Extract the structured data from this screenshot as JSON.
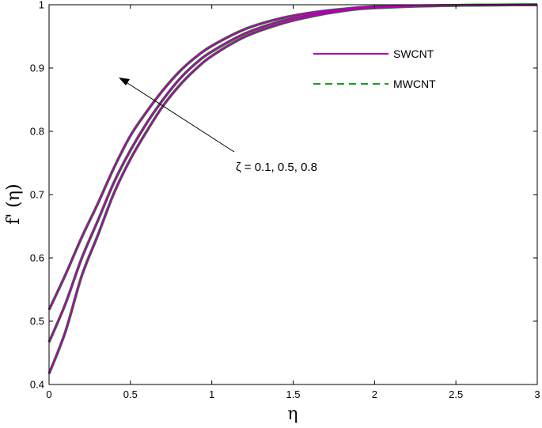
{
  "chart_data": {
    "type": "line",
    "xlabel": "η",
    "ylabel": "f' (η)",
    "xlim": [
      0,
      3
    ],
    "ylim": [
      0.4,
      1
    ],
    "xticks": [
      "0",
      "0.5",
      "1",
      "1.5",
      "2",
      "2.5",
      "3"
    ],
    "yticks": [
      "0.4",
      "0.5",
      "0.6",
      "0.7",
      "0.8",
      "0.9",
      "1"
    ],
    "grid": false,
    "legend_position": "top-right",
    "annotation": "ζ = 0.1, 0.5, 0.8",
    "colors": {
      "swcnt": "#b000b0",
      "mwcnt": "#1a9a1a"
    },
    "legend": [
      {
        "label": "SWCNT",
        "style": "solid",
        "color": "#b000b0"
      },
      {
        "label": "MWCNT",
        "style": "dashed",
        "color": "#1a9a1a"
      }
    ],
    "x": [
      0,
      0.1,
      0.2,
      0.3,
      0.4,
      0.5,
      0.6,
      0.7,
      0.8,
      0.9,
      1.0,
      1.2,
      1.4,
      1.6,
      1.8,
      2.0,
      2.5,
      3.0
    ],
    "series": [
      {
        "values": [
          0.417,
          0.483,
          0.571,
          0.636,
          0.703,
          0.756,
          0.8,
          0.84,
          0.872,
          0.898,
          0.919,
          0.949,
          0.968,
          0.981,
          0.99,
          0.995,
          0.999,
          1.0
        ]
      },
      {
        "values": [
          0.467,
          0.527,
          0.599,
          0.659,
          0.72,
          0.77,
          0.813,
          0.85,
          0.882,
          0.907,
          0.926,
          0.954,
          0.972,
          0.984,
          0.992,
          0.996,
          0.999,
          1.0
        ]
      },
      {
        "values": [
          0.518,
          0.573,
          0.632,
          0.686,
          0.743,
          0.793,
          0.831,
          0.865,
          0.894,
          0.917,
          0.935,
          0.961,
          0.977,
          0.987,
          0.993,
          0.997,
          0.999,
          1.0
        ]
      }
    ]
  }
}
